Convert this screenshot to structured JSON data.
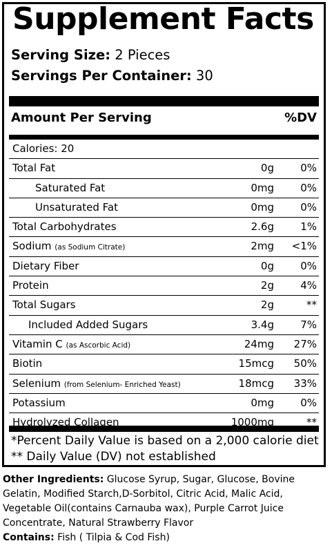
{
  "title": "Supplement Facts",
  "serving_size": {
    "label": "Serving Size:",
    "value": "2 Pieces"
  },
  "servings_per_container": {
    "label": "Servings Per Container:",
    "value": "30"
  },
  "amount_header": "Amount Per Serving",
  "dv_header": "%DV",
  "calories": "Calories: 20",
  "rows": [
    {
      "name": "Total Fat",
      "note": "",
      "amount": "0g",
      "dv": "0%"
    },
    {
      "name": "Saturated Fat",
      "note": "",
      "amount": "0mg",
      "dv": "0%"
    },
    {
      "name": "Unsaturated Fat",
      "note": "",
      "amount": "0mg",
      "dv": "0%"
    },
    {
      "name": "Total Carbohydrates",
      "note": "",
      "amount": "2.6g",
      "dv": "1%"
    },
    {
      "name": "Sodium",
      "note": "(as Sodium Citrate)",
      "amount": "2mg",
      "dv": "<1%"
    },
    {
      "name": "Dietary Fiber",
      "note": "",
      "amount": "0g",
      "dv": "0%"
    },
    {
      "name": "Protein",
      "note": "",
      "amount": "2g",
      "dv": "4%"
    },
    {
      "name": "Total Sugars",
      "note": "",
      "amount": "2g",
      "dv": "**"
    },
    {
      "name": "Included Added Sugars",
      "note": "",
      "amount": "3.4g",
      "dv": "7%"
    },
    {
      "name": "Vitamin C",
      "note": "(as Ascorbic Acid)",
      "amount": "24mg",
      "dv": "27%"
    },
    {
      "name": "Biotin",
      "note": "",
      "amount": "15mcg",
      "dv": "50%"
    },
    {
      "name": "Selenium",
      "note": "(from Selenium- Enriched Yeast)",
      "amount": "18mcg",
      "dv": "33%"
    },
    {
      "name": "Potassium",
      "note": "",
      "amount": "0mg",
      "dv": "0%"
    },
    {
      "name": "Hydrolyzed Collagen",
      "note": "",
      "amount": "1000mg",
      "dv": "**"
    }
  ],
  "footnote_1": "*Percent Daily Value is based on a 2,000 calorie diet",
  "footnote_2": "** Daily Value (DV) not established",
  "other_ingredients": {
    "label": "Other Ingredients:",
    "text": " Glucose Syrup, Sugar, Glucose, Bovine Gelatin, Modified Starch,D-Sorbitol, Citric Acid, Malic Acid, Vegetable Oil(contains Carnauba wax), Purple Carrot Juice Concentrate, Natural Strawberry Flavor"
  },
  "contains": {
    "label": "Contains:",
    "text": " Fish ( Tilpia & Cod Fish)"
  }
}
